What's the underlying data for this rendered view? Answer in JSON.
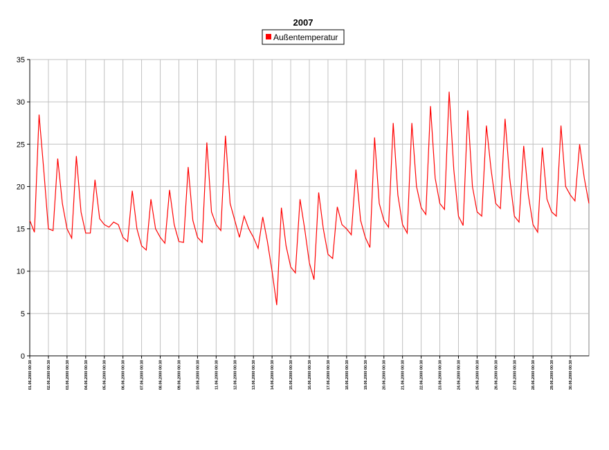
{
  "chart_data": {
    "type": "line",
    "title": "2007",
    "x": [
      0,
      0.25,
      0.5,
      0.75,
      1,
      1.25,
      1.5,
      1.75,
      2,
      2.25,
      2.5,
      2.75,
      3,
      3.25,
      3.5,
      3.75,
      4,
      4.25,
      4.5,
      4.75,
      5,
      5.25,
      5.5,
      5.75,
      6,
      6.25,
      6.5,
      6.75,
      7,
      7.25,
      7.5,
      7.75,
      8,
      8.25,
      8.5,
      8.75,
      9,
      9.25,
      9.5,
      9.75,
      10,
      10.25,
      10.5,
      10.75,
      11,
      11.25,
      11.5,
      11.75,
      12,
      12.25,
      12.5,
      12.75,
      13,
      13.25,
      13.5,
      13.75,
      14,
      14.25,
      14.5,
      14.75,
      15,
      15.25,
      15.5,
      15.75,
      16,
      16.25,
      16.5,
      16.75,
      17,
      17.25,
      17.5,
      17.75,
      18,
      18.25,
      18.5,
      18.75,
      19,
      19.25,
      19.5,
      19.75,
      20,
      20.25,
      20.5,
      20.75,
      21,
      21.25,
      21.5,
      21.75,
      22,
      22.25,
      22.5,
      22.75,
      23,
      23.25,
      23.5,
      23.75,
      24,
      24.25,
      24.5,
      24.75,
      25,
      25.25,
      25.5,
      25.75,
      26,
      26.25,
      26.5,
      26.75,
      27,
      27.25,
      27.5,
      27.75,
      28,
      28.25,
      28.5,
      28.75,
      29,
      29.25,
      29.5,
      29.75,
      30
    ],
    "series": [
      {
        "name": "Außentemperatur",
        "color": "#ff0000",
        "values": [
          16,
          14.6,
          28.5,
          22,
          15,
          14.8,
          23.3,
          18,
          15,
          13.9,
          23.6,
          17,
          14.5,
          14.5,
          20.8,
          16.2,
          15.5,
          15.2,
          15.8,
          15.5,
          14,
          13.5,
          19.5,
          15,
          13,
          12.5,
          18.5,
          15,
          14,
          13.3,
          19.6,
          15.5,
          13.5,
          13.4,
          22.3,
          16,
          14,
          13.4,
          25.2,
          17,
          15.5,
          14.8,
          26,
          18,
          16,
          14,
          16.5,
          15,
          14,
          12.7,
          16.4,
          13.5,
          10,
          6,
          17.5,
          13,
          10.5,
          9.8,
          18.5,
          15,
          11,
          9,
          19.3,
          15,
          12,
          11.5,
          17.6,
          15.5,
          15,
          14.3,
          22,
          16,
          14,
          12.8,
          25.8,
          18,
          16,
          15.2,
          27.5,
          19,
          15.5,
          14.5,
          27.5,
          20,
          17.5,
          16.7,
          29.5,
          21,
          18,
          17.3,
          31.2,
          22,
          16.5,
          15.4,
          29,
          20,
          17,
          16.5,
          27.2,
          22,
          18,
          17.4,
          28,
          21,
          16.5,
          15.8,
          24.8,
          19,
          15.5,
          14.6,
          24.6,
          18.5,
          17,
          16.5,
          27.2,
          20,
          19,
          18.3,
          25,
          21,
          18
        ]
      }
    ],
    "xlim": [
      0,
      30
    ],
    "xticks": [
      {
        "value": 0,
        "label": "01.06.2000 00:30"
      },
      {
        "value": 1,
        "label": "02.06.2000 00:30"
      },
      {
        "value": 2,
        "label": "03.06.2000 00:30"
      },
      {
        "value": 3,
        "label": "04.06.2000 00:30"
      },
      {
        "value": 4,
        "label": "05.06.2000 00:30"
      },
      {
        "value": 5,
        "label": "06.06.2000 00:30"
      },
      {
        "value": 6,
        "label": "07.06.2000 00:30"
      },
      {
        "value": 7,
        "label": "08.06.2000 00:30"
      },
      {
        "value": 8,
        "label": "09.06.2000 00:30"
      },
      {
        "value": 9,
        "label": "10.06.2000 00:30"
      },
      {
        "value": 10,
        "label": "11.06.2000 00:30"
      },
      {
        "value": 11,
        "label": "12.06.2000 00:30"
      },
      {
        "value": 12,
        "label": "13.06.2000 00:30"
      },
      {
        "value": 13,
        "label": "14.06.2000 00:30"
      },
      {
        "value": 14,
        "label": "15.06.2000 00:30"
      },
      {
        "value": 15,
        "label": "16.06.2000 00:30"
      },
      {
        "value": 16,
        "label": "17.06.2000 00:30"
      },
      {
        "value": 17,
        "label": "18.06.2000 00:30"
      },
      {
        "value": 18,
        "label": "19.06.2000 00:30"
      },
      {
        "value": 19,
        "label": "20.06.2000 00:30"
      },
      {
        "value": 20,
        "label": "21.06.2000 00:30"
      },
      {
        "value": 21,
        "label": "22.06.2000 00:30"
      },
      {
        "value": 22,
        "label": "23.06.2000 00:30"
      },
      {
        "value": 23,
        "label": "24.06.2000 00:30"
      },
      {
        "value": 24,
        "label": "25.06.2000 00:30"
      },
      {
        "value": 25,
        "label": "26.06.2000 00:30"
      },
      {
        "value": 26,
        "label": "27.06.2000 00:30"
      },
      {
        "value": 27,
        "label": "28.06.2000 00:30"
      },
      {
        "value": 28,
        "label": "29.06.2000 00:30"
      },
      {
        "value": 29,
        "label": "30.06.2000 00:30"
      }
    ],
    "ylim": [
      0,
      35
    ],
    "yticks": [
      0,
      5,
      10,
      15,
      20,
      25,
      30,
      35
    ],
    "grid": true
  }
}
